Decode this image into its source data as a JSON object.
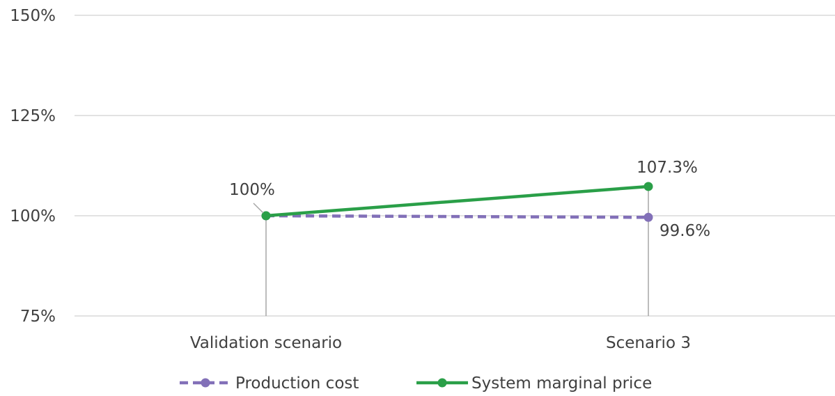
{
  "chart_data": {
    "type": "line",
    "categories": [
      "Validation scenario",
      "Scenario 3"
    ],
    "ylim": [
      75,
      150
    ],
    "yticks": [
      75,
      100,
      125,
      150
    ],
    "ytick_labels": [
      "75%",
      "100%",
      "125%",
      "150%"
    ],
    "grid": true,
    "legend_position": "bottom",
    "title": "",
    "xlabel": "",
    "ylabel": "",
    "series": [
      {
        "name": "Production cost",
        "values": [
          100,
          99.6
        ],
        "labels": [
          "",
          "99.6%"
        ],
        "color": "#8270b8",
        "style": "dashed"
      },
      {
        "name": "System marginal price",
        "values": [
          100,
          107.3
        ],
        "labels": [
          "100%",
          "107.3%"
        ],
        "color": "#2a9f48",
        "style": "solid"
      }
    ]
  }
}
